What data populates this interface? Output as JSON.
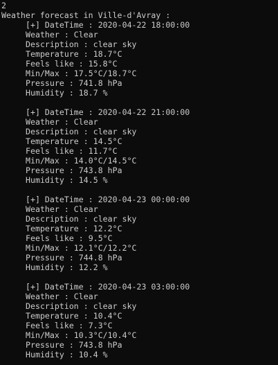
{
  "terminal": {
    "first_line": "2",
    "title": "Weather forecast in Ville-d'Avray :",
    "entries": [
      {
        "lines": [
          "[+] DateTime : 2020-04-22 18:00:00",
          "Weather : Clear",
          "Description : clear sky",
          "Temperature : 18.7°C",
          "Feels like : 15.8°C",
          "Min/Max : 17.5°C/18.7°C",
          "Pressure : 741.8 hPa",
          "Humidity : 18.7 %"
        ]
      },
      {
        "lines": [
          "[+] DateTime : 2020-04-22 21:00:00",
          "Weather : Clear",
          "Description : clear sky",
          "Temperature : 14.5°C",
          "Feels like : 11.7°C",
          "Min/Max : 14.0°C/14.5°C",
          "Pressure : 743.8 hPa",
          "Humidity : 14.5 %"
        ]
      },
      {
        "lines": [
          "[+] DateTime : 2020-04-23 00:00:00",
          "Weather : Clear",
          "Description : clear sky",
          "Temperature : 12.2°C",
          "Feels like : 9.5°C",
          "Min/Max : 12.1°C/12.2°C",
          "Pressure : 744.8 hPa",
          "Humidity : 12.2 %"
        ]
      },
      {
        "lines": [
          "[+] DateTime : 2020-04-23 03:00:00",
          "Weather : Clear",
          "Description : clear sky",
          "Temperature : 10.4°C",
          "Feels like : 7.3°C",
          "Min/Max : 10.3°C/10.4°C",
          "Pressure : 743.8 hPa",
          "Humidity : 10.4 %"
        ]
      }
    ]
  }
}
